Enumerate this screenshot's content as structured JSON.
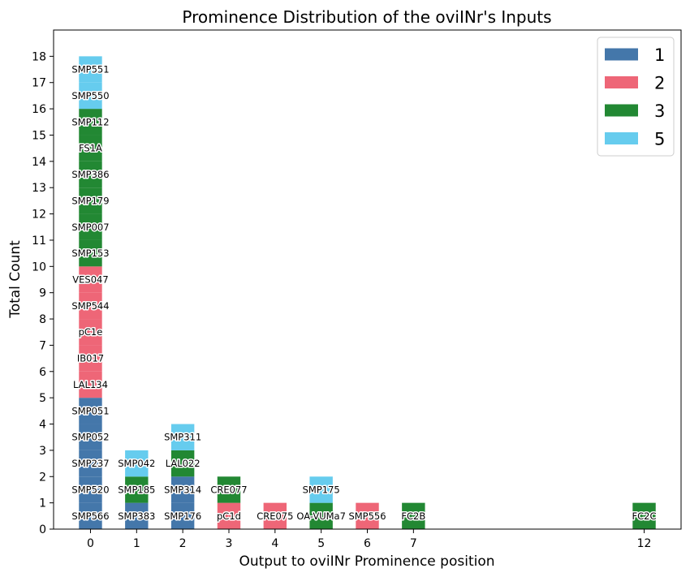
{
  "chart_data": {
    "type": "bar",
    "stacked": true,
    "title": "Prominence Distribution of the oviINr's Inputs",
    "xlabel": "Output to oviINr Prominence position",
    "ylabel": "Total Count",
    "ylim": [
      0,
      19
    ],
    "yticks": [
      0,
      1,
      2,
      3,
      4,
      5,
      6,
      7,
      8,
      9,
      10,
      11,
      12,
      13,
      14,
      15,
      16,
      17,
      18
    ],
    "categories": [
      "0",
      "1",
      "2",
      "3",
      "4",
      "5",
      "6",
      "7",
      "12"
    ],
    "xpositions": [
      0,
      1,
      2,
      3,
      4,
      5,
      6,
      7,
      12
    ],
    "xlim": [
      -0.8,
      12.8
    ],
    "legend": {
      "position": "top-right",
      "entries": [
        {
          "label": "1",
          "color": "#4477aa"
        },
        {
          "label": "2",
          "color": "#ee6677"
        },
        {
          "label": "3",
          "color": "#228833"
        },
        {
          "label": "5",
          "color": "#66ccee"
        }
      ]
    },
    "stacks": [
      {
        "x": 0,
        "segments": [
          {
            "label": "SMP566",
            "series": "1"
          },
          {
            "label": "SMP520",
            "series": "1"
          },
          {
            "label": "SMP237",
            "series": "1"
          },
          {
            "label": "SMP052",
            "series": "1"
          },
          {
            "label": "SMP051",
            "series": "1"
          },
          {
            "label": "LAL134",
            "series": "2"
          },
          {
            "label": "IB017",
            "series": "2"
          },
          {
            "label": "pC1e",
            "series": "2"
          },
          {
            "label": "SMP544",
            "series": "2"
          },
          {
            "label": "VES047",
            "series": "2"
          },
          {
            "label": "SMP153",
            "series": "3"
          },
          {
            "label": "SMP007",
            "series": "3"
          },
          {
            "label": "SMP179",
            "series": "3"
          },
          {
            "label": "SMP386",
            "series": "3"
          },
          {
            "label": "FS1A",
            "series": "3"
          },
          {
            "label": "SMP112",
            "series": "3"
          },
          {
            "label": "SMP550",
            "series": "5"
          },
          {
            "label": "SMP551",
            "series": "5"
          }
        ]
      },
      {
        "x": 1,
        "segments": [
          {
            "label": "SMP383",
            "series": "1"
          },
          {
            "label": "SMP185",
            "series": "3"
          },
          {
            "label": "SMP042",
            "series": "5"
          }
        ]
      },
      {
        "x": 2,
        "segments": [
          {
            "label": "SMP176",
            "series": "1"
          },
          {
            "label": "SMP314",
            "series": "1"
          },
          {
            "label": "LAL022",
            "series": "3"
          },
          {
            "label": "SMP311",
            "series": "5"
          }
        ]
      },
      {
        "x": 3,
        "segments": [
          {
            "label": "pC1d",
            "series": "2"
          },
          {
            "label": "CRE077",
            "series": "3"
          }
        ]
      },
      {
        "x": 4,
        "segments": [
          {
            "label": "CRE075",
            "series": "2"
          }
        ]
      },
      {
        "x": 5,
        "segments": [
          {
            "label": "OA-VUMa7",
            "series": "3"
          },
          {
            "label": "SMP175",
            "series": "5"
          }
        ]
      },
      {
        "x": 6,
        "segments": [
          {
            "label": "SMP556",
            "series": "2"
          }
        ]
      },
      {
        "x": 7,
        "segments": [
          {
            "label": "FC2B",
            "series": "3"
          }
        ]
      },
      {
        "x": 12,
        "segments": [
          {
            "label": "FC2C",
            "series": "3"
          }
        ]
      }
    ]
  }
}
